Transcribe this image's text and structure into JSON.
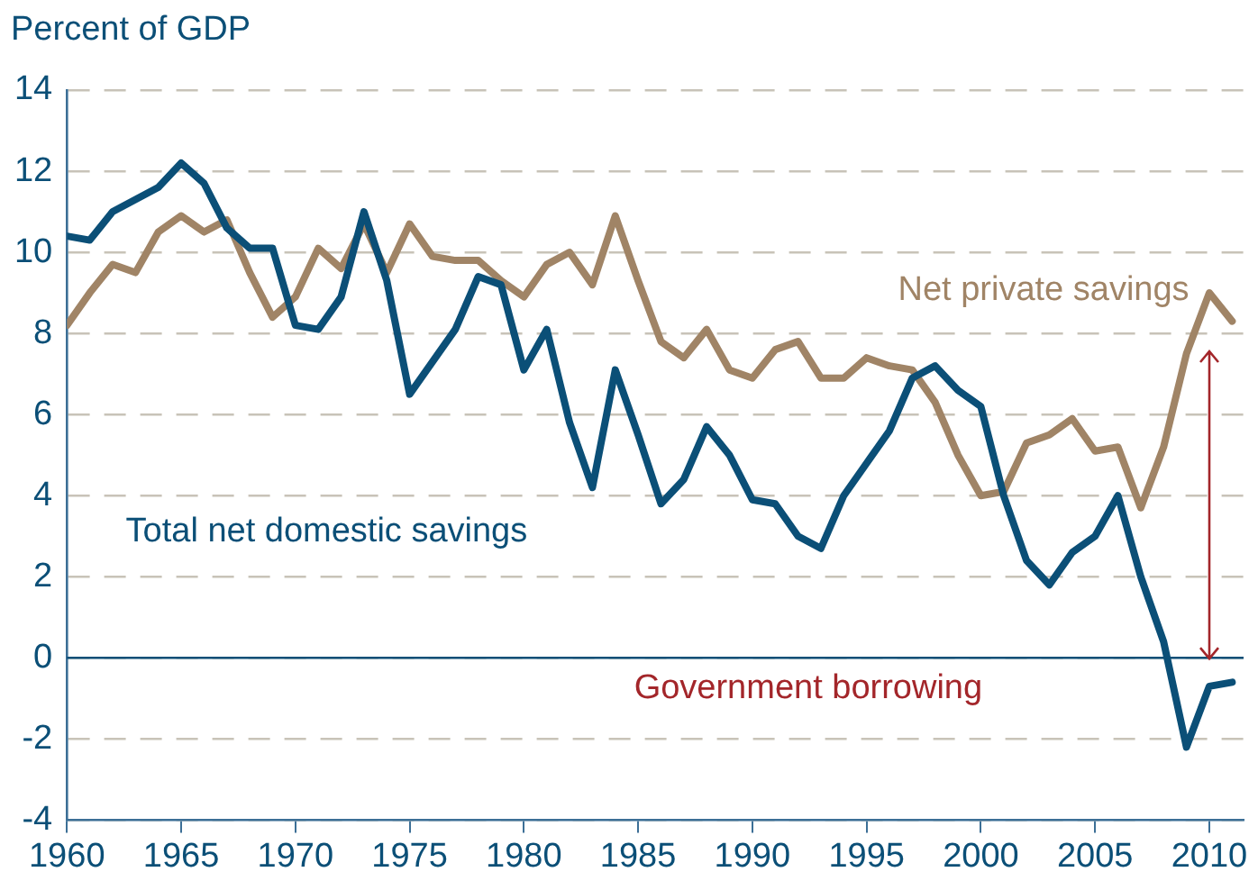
{
  "chart_data": {
    "type": "line",
    "ylabel": "Percent of GDP",
    "x": [
      1960,
      1961,
      1962,
      1963,
      1964,
      1965,
      1966,
      1967,
      1968,
      1969,
      1970,
      1971,
      1972,
      1973,
      1974,
      1975,
      1976,
      1977,
      1978,
      1979,
      1980,
      1981,
      1982,
      1983,
      1984,
      1985,
      1986,
      1987,
      1988,
      1989,
      1990,
      1991,
      1992,
      1993,
      1994,
      1995,
      1996,
      1997,
      1998,
      1999,
      2000,
      2001,
      2002,
      2003,
      2004,
      2005,
      2006,
      2007,
      2008,
      2009,
      2010,
      2011
    ],
    "series": [
      {
        "name": "Total net domestic savings",
        "color": "#0b4f77",
        "values": [
          10.4,
          10.3,
          11.0,
          11.3,
          11.6,
          12.2,
          11.7,
          10.6,
          10.1,
          10.1,
          8.2,
          8.1,
          8.9,
          11.0,
          9.3,
          6.5,
          7.3,
          8.1,
          9.4,
          9.2,
          7.1,
          8.1,
          5.8,
          4.2,
          7.1,
          5.5,
          3.8,
          4.4,
          5.7,
          5.0,
          3.9,
          3.8,
          3.0,
          2.7,
          4.0,
          4.8,
          5.6,
          6.9,
          7.2,
          6.6,
          6.2,
          4.0,
          2.4,
          1.8,
          2.6,
          3.0,
          4.0,
          2.0,
          0.4,
          -2.2,
          -0.7,
          -0.6
        ]
      },
      {
        "name": "Net private savings",
        "color": "#a08466",
        "values": [
          8.2,
          9.0,
          9.7,
          9.5,
          10.5,
          10.9,
          10.5,
          10.8,
          9.5,
          8.4,
          8.9,
          10.1,
          9.6,
          10.7,
          9.5,
          10.7,
          9.9,
          9.8,
          9.8,
          9.3,
          8.9,
          9.7,
          10.0,
          9.2,
          10.9,
          9.3,
          7.8,
          7.4,
          8.1,
          7.1,
          6.9,
          7.6,
          7.8,
          6.9,
          6.9,
          7.4,
          7.2,
          7.1,
          6.3,
          5.0,
          4.0,
          4.1,
          5.3,
          5.5,
          5.9,
          5.1,
          5.2,
          3.7,
          5.2,
          7.5,
          9.0,
          8.3
        ]
      }
    ],
    "xlim": [
      1960,
      2011.5
    ],
    "xticks": [
      1960,
      1965,
      1970,
      1975,
      1980,
      1985,
      1990,
      1995,
      2000,
      2005,
      2010
    ],
    "ylim": [
      -4,
      14
    ],
    "yticks": [
      -4,
      -2,
      0,
      2,
      4,
      6,
      8,
      10,
      12,
      14
    ],
    "grid": "y",
    "legend": false,
    "marker": "none",
    "line_style": "solid",
    "ref_lines": [
      {
        "axis": "y",
        "value": 0,
        "color": "#0b4f77",
        "line_style": "solid"
      }
    ],
    "annotations": [
      "Government borrowing"
    ]
  }
}
